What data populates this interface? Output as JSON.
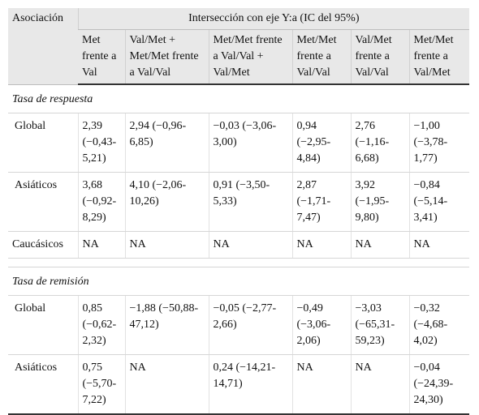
{
  "header": {
    "assoc_label": "Asociación",
    "span_label": "Intersección con eje Y:a (IC del 95%)",
    "columns": [
      "Met frente a Val",
      "Val/Met + Met/Met frente a Val/Val",
      "Met/Met frente a Val/Val + Val/Met",
      "Met/Met frente a Val/Val",
      "Val/Met frente a Val/Val",
      "Met/Met frente a Val/Met"
    ]
  },
  "sections": [
    {
      "title": "Tasa de respuesta",
      "rows": [
        {
          "label": "Global",
          "cells": [
            "2,39 (−0,43-5,21)",
            "2,94 (−0,96-6,85)",
            "−0,03 (−3,06-3,00)",
            "0,94 (−2,95-4,84)",
            "2,76 (−1,16-6,68)",
            "−1,00 (−3,78-1,77)"
          ]
        },
        {
          "label": "Asiáticos",
          "cells": [
            "3,68 (−0,92-8,29)",
            "4,10 (−2,06-10,26)",
            "0,91 (−3,50-5,33)",
            "2,87 (−1,71-7,47)",
            "3,92 (−1,95-9,80)",
            "−0,84 (−5,14-3,41)"
          ]
        },
        {
          "label": "Caucásicos",
          "cells": [
            "NA",
            "NA",
            "NA",
            "NA",
            "NA",
            "NA"
          ]
        }
      ]
    },
    {
      "title": "Tasa de remisión",
      "rows": [
        {
          "label": "Global",
          "cells": [
            "0,85 (−0,62-2,32)",
            "−1,88 (−50,88-47,12)",
            "−0,05 (−2,77-2,66)",
            "−0,49 (−3,06-2,06)",
            "−3,03 (−65,31-59,23)",
            "−0,32 (−4,68-4,02)"
          ]
        },
        {
          "label": "Asiáticos",
          "cells": [
            "0,75 (−5,70-7,22)",
            "NA",
            "0,24 (−14,21-14,71)",
            "NA",
            "NA",
            "−0,04 (−24,39-24,30)"
          ]
        }
      ]
    }
  ]
}
